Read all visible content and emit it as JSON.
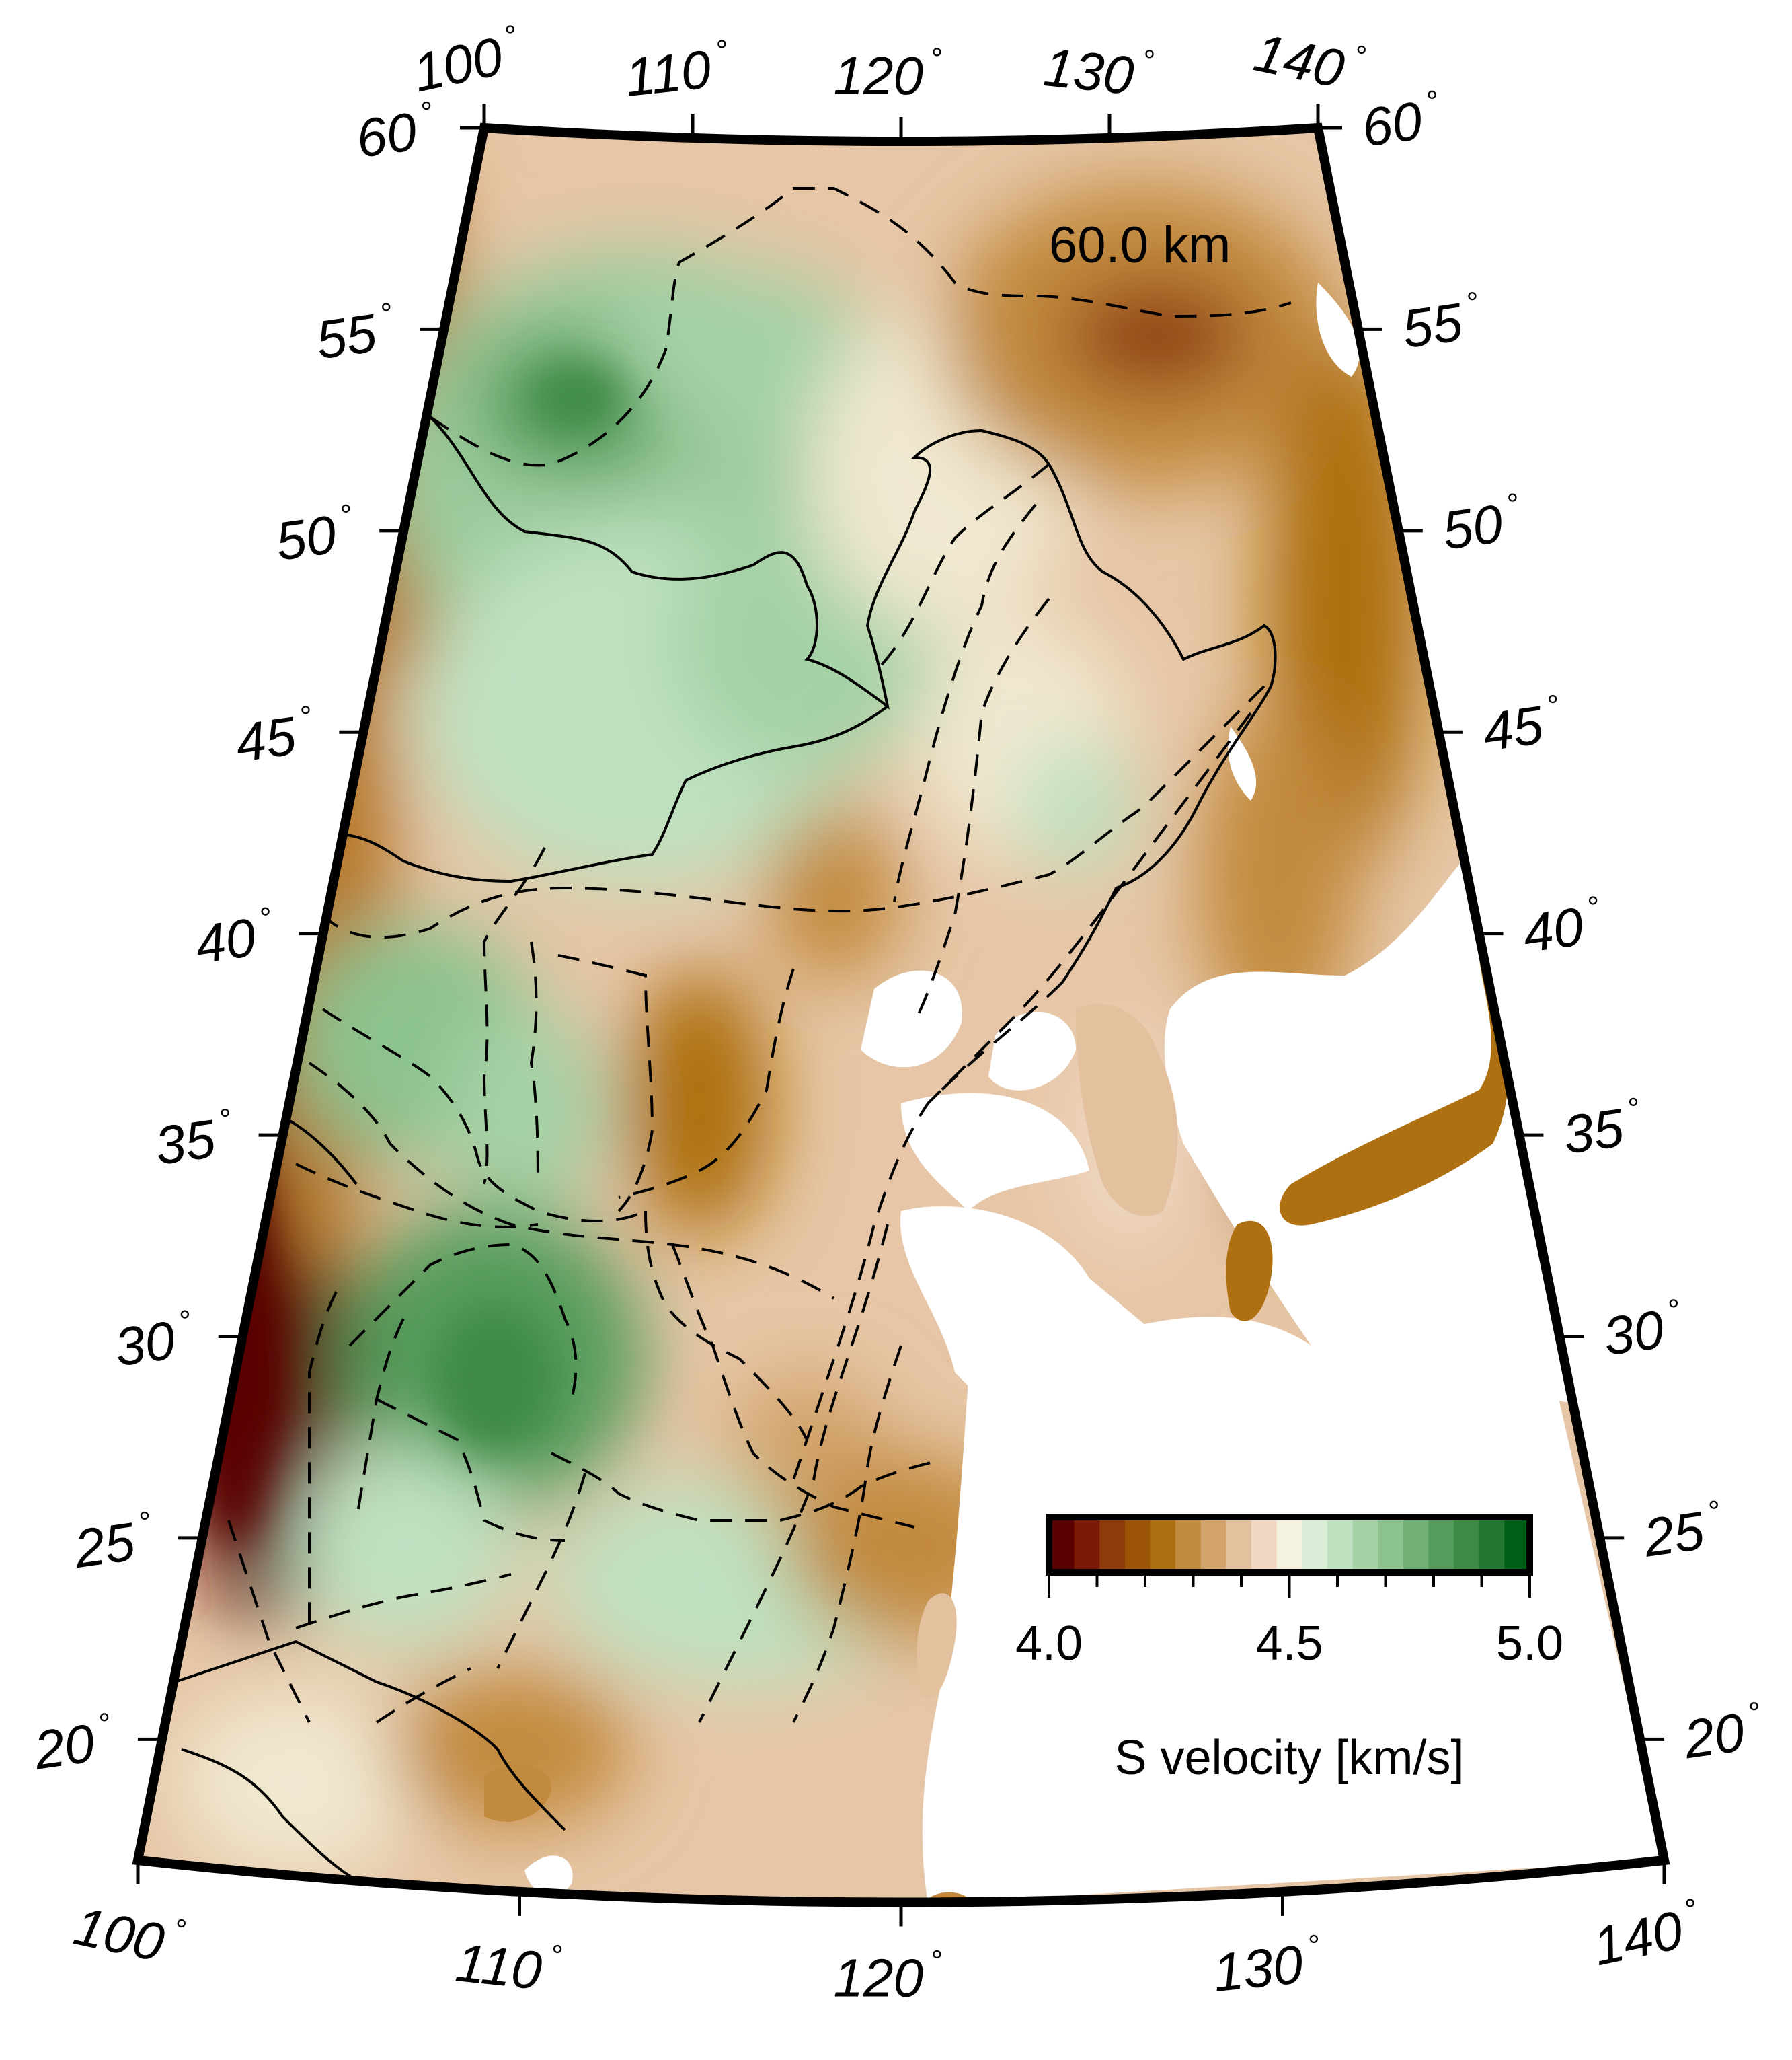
{
  "map": {
    "depth_label": "60.0 km",
    "projection": "conic",
    "lon_range": [
      100,
      140
    ],
    "lat_range": [
      17,
      60
    ],
    "lon_ticks": [
      {
        "value": 100,
        "label": "100"
      },
      {
        "value": 110,
        "label": "110"
      },
      {
        "value": 120,
        "label": "120"
      },
      {
        "value": 130,
        "label": "130"
      },
      {
        "value": 140,
        "label": "140"
      }
    ],
    "lat_ticks": [
      {
        "value": 20,
        "label": "20"
      },
      {
        "value": 25,
        "label": "25"
      },
      {
        "value": 30,
        "label": "30"
      },
      {
        "value": 35,
        "label": "35"
      },
      {
        "value": 40,
        "label": "40"
      },
      {
        "value": 45,
        "label": "45"
      },
      {
        "value": 50,
        "label": "50"
      },
      {
        "value": 55,
        "label": "55"
      },
      {
        "value": 60,
        "label": "60"
      }
    ],
    "degree_symbol": "°",
    "colors": {
      "slow": "#5a0000",
      "mid": "#f5f1e0",
      "fast": "#005f16",
      "land_low": "#c9955a",
      "ocean": "#ffffff"
    }
  },
  "colorbar": {
    "title": "S velocity [km/s]",
    "min": 4.0,
    "max": 5.0,
    "labels": [
      "4.0",
      "4.5",
      "5.0"
    ],
    "bins": [
      "#5a0000",
      "#7a1a06",
      "#8e3a0a",
      "#9c5409",
      "#ae7010",
      "#c28a3e",
      "#d2a36a",
      "#e3c19f",
      "#f0d8c4",
      "#f5f1e0",
      "#d9edd6",
      "#bfe1c0",
      "#a4d1a6",
      "#8cc28e",
      "#70b074",
      "#559c5c",
      "#3c8a44",
      "#22762f",
      "#005f16"
    ]
  }
}
